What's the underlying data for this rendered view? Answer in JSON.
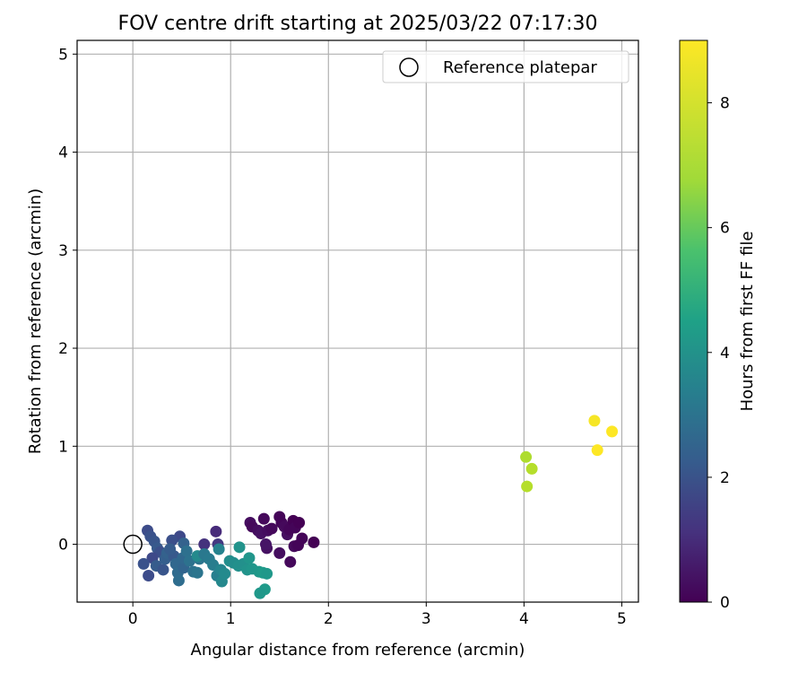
{
  "chart_data": {
    "type": "scatter",
    "title": "FOV centre drift starting at 2025/03/22 07:17:30",
    "xlabel": "Angular distance from reference (arcmin)",
    "ylabel": "Rotation from reference (arcmin)",
    "xlim": [
      -0.57,
      5.17
    ],
    "ylim": [
      -0.59,
      5.14
    ],
    "xticks": [
      0,
      1,
      2,
      3,
      4,
      5
    ],
    "yticks": [
      0,
      1,
      2,
      3,
      4,
      5
    ],
    "grid": true,
    "legend": {
      "position": "upper right",
      "entries": [
        "Reference platepar"
      ]
    },
    "reference_point": {
      "x": 0,
      "y": 0,
      "label": "Reference platepar",
      "marker": "open-circle"
    },
    "colorbar": {
      "label": "Hours from first FF file",
      "colormap": "viridis",
      "range": [
        0,
        9
      ],
      "ticks": [
        0,
        2,
        4,
        6,
        8
      ]
    },
    "points": [
      {
        "x": 1.2,
        "y": 0.22,
        "h": 0.3
      },
      {
        "x": 1.22,
        "y": 0.18,
        "h": 0.2
      },
      {
        "x": 1.28,
        "y": 0.14,
        "h": 0.3
      },
      {
        "x": 1.34,
        "y": 0.26,
        "h": 0.2
      },
      {
        "x": 1.31,
        "y": 0.11,
        "h": 0.4
      },
      {
        "x": 1.38,
        "y": 0.14,
        "h": 0.3
      },
      {
        "x": 1.42,
        "y": 0.16,
        "h": 0.2
      },
      {
        "x": 1.5,
        "y": 0.28,
        "h": 0.1
      },
      {
        "x": 1.52,
        "y": 0.22,
        "h": 0.1
      },
      {
        "x": 1.55,
        "y": 0.18,
        "h": 0.2
      },
      {
        "x": 1.58,
        "y": 0.1,
        "h": 0.3
      },
      {
        "x": 1.6,
        "y": 0.15,
        "h": 0.1
      },
      {
        "x": 1.64,
        "y": 0.24,
        "h": 0.0
      },
      {
        "x": 1.66,
        "y": 0.17,
        "h": 0.1
      },
      {
        "x": 1.7,
        "y": 0.22,
        "h": 0.0
      },
      {
        "x": 1.73,
        "y": 0.06,
        "h": 0.1
      },
      {
        "x": 1.65,
        "y": -0.02,
        "h": 0.2
      },
      {
        "x": 1.69,
        "y": -0.01,
        "h": 0.1
      },
      {
        "x": 1.85,
        "y": 0.02,
        "h": 0.0
      },
      {
        "x": 1.61,
        "y": -0.18,
        "h": 0.2
      },
      {
        "x": 1.5,
        "y": -0.09,
        "h": 0.3
      },
      {
        "x": 1.37,
        "y": -0.04,
        "h": 0.4
      },
      {
        "x": 1.36,
        "y": 0.0,
        "h": 0.5
      },
      {
        "x": 0.85,
        "y": 0.13,
        "h": 1.1
      },
      {
        "x": 0.73,
        "y": 0.0,
        "h": 1.3
      },
      {
        "x": 0.87,
        "y": 0.0,
        "h": 1.5
      },
      {
        "x": 0.48,
        "y": 0.08,
        "h": 2.0
      },
      {
        "x": 0.4,
        "y": 0.04,
        "h": 2.2
      },
      {
        "x": 0.15,
        "y": 0.14,
        "h": 2.1
      },
      {
        "x": 0.18,
        "y": 0.08,
        "h": 2.3
      },
      {
        "x": 0.22,
        "y": 0.03,
        "h": 2.4
      },
      {
        "x": 0.25,
        "y": -0.04,
        "h": 2.5
      },
      {
        "x": 0.28,
        "y": -0.08,
        "h": 2.2
      },
      {
        "x": 0.2,
        "y": -0.14,
        "h": 2.0
      },
      {
        "x": 0.11,
        "y": -0.2,
        "h": 2.3
      },
      {
        "x": 0.16,
        "y": -0.32,
        "h": 2.1
      },
      {
        "x": 0.24,
        "y": -0.22,
        "h": 2.6
      },
      {
        "x": 0.31,
        "y": -0.26,
        "h": 2.4
      },
      {
        "x": 0.33,
        "y": -0.15,
        "h": 2.7
      },
      {
        "x": 0.35,
        "y": -0.09,
        "h": 2.8
      },
      {
        "x": 0.42,
        "y": -0.12,
        "h": 2.5
      },
      {
        "x": 0.44,
        "y": -0.2,
        "h": 3.0
      },
      {
        "x": 0.46,
        "y": -0.29,
        "h": 3.1
      },
      {
        "x": 0.47,
        "y": -0.37,
        "h": 3.2
      },
      {
        "x": 0.52,
        "y": -0.24,
        "h": 2.9
      },
      {
        "x": 0.51,
        "y": -0.14,
        "h": 3.0
      },
      {
        "x": 0.52,
        "y": 0.01,
        "h": 2.8
      },
      {
        "x": 0.38,
        "y": -0.05,
        "h": 2.6
      },
      {
        "x": 0.55,
        "y": -0.07,
        "h": 3.3
      },
      {
        "x": 0.58,
        "y": -0.17,
        "h": 3.4
      },
      {
        "x": 0.62,
        "y": -0.28,
        "h": 3.4
      },
      {
        "x": 0.66,
        "y": -0.29,
        "h": 3.5
      },
      {
        "x": 0.68,
        "y": -0.15,
        "h": 3.5
      },
      {
        "x": 0.66,
        "y": -0.12,
        "h": 4.3
      },
      {
        "x": 0.73,
        "y": -0.1,
        "h": 3.6
      },
      {
        "x": 0.78,
        "y": -0.15,
        "h": 3.7
      },
      {
        "x": 0.82,
        "y": -0.21,
        "h": 3.8
      },
      {
        "x": 0.86,
        "y": -0.32,
        "h": 3.9
      },
      {
        "x": 0.88,
        "y": -0.05,
        "h": 4.0
      },
      {
        "x": 0.9,
        "y": -0.26,
        "h": 4.1
      },
      {
        "x": 0.91,
        "y": -0.38,
        "h": 4.2
      },
      {
        "x": 0.94,
        "y": -0.3,
        "h": 4.3
      },
      {
        "x": 0.99,
        "y": -0.17,
        "h": 4.4
      },
      {
        "x": 1.03,
        "y": -0.19,
        "h": 4.4
      },
      {
        "x": 1.08,
        "y": -0.22,
        "h": 4.5
      },
      {
        "x": 1.09,
        "y": -0.03,
        "h": 4.6
      },
      {
        "x": 1.13,
        "y": -0.2,
        "h": 4.5
      },
      {
        "x": 1.17,
        "y": -0.26,
        "h": 4.6
      },
      {
        "x": 1.19,
        "y": -0.14,
        "h": 4.7
      },
      {
        "x": 1.22,
        "y": -0.25,
        "h": 4.7
      },
      {
        "x": 1.29,
        "y": -0.28,
        "h": 4.8
      },
      {
        "x": 1.33,
        "y": -0.29,
        "h": 4.9
      },
      {
        "x": 1.35,
        "y": -0.46,
        "h": 4.9
      },
      {
        "x": 1.3,
        "y": -0.5,
        "h": 4.8
      },
      {
        "x": 1.37,
        "y": -0.3,
        "h": 4.8
      },
      {
        "x": 4.02,
        "y": 0.89,
        "h": 7.9
      },
      {
        "x": 4.08,
        "y": 0.77,
        "h": 8.0
      },
      {
        "x": 4.03,
        "y": 0.59,
        "h": 8.0
      },
      {
        "x": 4.72,
        "y": 1.26,
        "h": 8.9
      },
      {
        "x": 4.75,
        "y": 0.96,
        "h": 9.0
      },
      {
        "x": 4.9,
        "y": 1.15,
        "h": 9.0
      }
    ]
  }
}
